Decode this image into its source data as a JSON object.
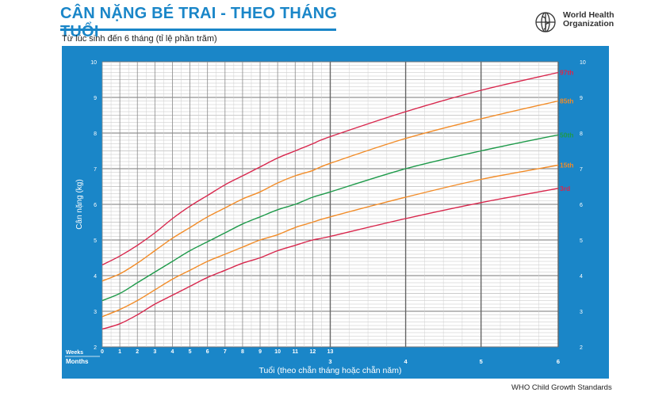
{
  "header": {
    "title": "CÂN NẶNG BÉ TRAI - THEO THÁNG TUỔI",
    "subtitle": "Từ lúc sinh đến 6 tháng (tỉ lệ phần trăm)",
    "logo_line1": "World Health",
    "logo_line2": "Organization",
    "footer": "WHO Child Growth Standards"
  },
  "colors": {
    "frame_blue": "#1a86c8",
    "percentile_97": "#d8264c",
    "percentile_85": "#f28c28",
    "percentile_50": "#1e9a4a",
    "percentile_15": "#f28c28",
    "percentile_3": "#d8264c"
  },
  "chart_data": {
    "type": "line",
    "title": "CÂN NẶNG BÉ TRAI - THEO THÁNG TUỔI",
    "subtitle": "Từ lúc sinh đến 6 tháng (tỉ lệ phần trăm)",
    "xlabel": "Tuổi (theo chẵn tháng hoặc chẵn năm)",
    "ylabel": "Cân nặng (kg)",
    "x_unit": "weeks",
    "xlim": [
      0,
      26
    ],
    "ylim": [
      2,
      10
    ],
    "week_label": "Weeks",
    "month_label": "Months",
    "week_ticks": [
      "0",
      "1",
      "2",
      "3",
      "4",
      "5",
      "6",
      "7",
      "8",
      "9",
      "10",
      "11",
      "12",
      "13"
    ],
    "month_ticks": [
      {
        "week": 13,
        "label": "3"
      },
      {
        "week": 17.3,
        "label": "4"
      },
      {
        "week": 21.6,
        "label": "5"
      },
      {
        "week": 26,
        "label": "6"
      }
    ],
    "y_ticks": [
      "2",
      "3",
      "4",
      "5",
      "6",
      "7",
      "8",
      "9",
      "10"
    ],
    "grid": true,
    "series": [
      {
        "name": "97th",
        "x": [
          0,
          1,
          2,
          3,
          4,
          5,
          6,
          7,
          8,
          9,
          10,
          11,
          12,
          13,
          17.3,
          21.6,
          26
        ],
        "values": [
          4.3,
          4.55,
          4.85,
          5.2,
          5.6,
          5.95,
          6.25,
          6.55,
          6.8,
          7.05,
          7.3,
          7.5,
          7.7,
          7.9,
          8.6,
          9.2,
          9.7
        ]
      },
      {
        "name": "85th",
        "x": [
          0,
          1,
          2,
          3,
          4,
          5,
          6,
          7,
          8,
          9,
          10,
          11,
          12,
          13,
          17.3,
          21.6,
          26
        ],
        "values": [
          3.85,
          4.05,
          4.35,
          4.7,
          5.05,
          5.35,
          5.65,
          5.9,
          6.15,
          6.35,
          6.6,
          6.8,
          6.95,
          7.15,
          7.85,
          8.4,
          8.9
        ]
      },
      {
        "name": "50th",
        "x": [
          0,
          1,
          2,
          3,
          4,
          5,
          6,
          7,
          8,
          9,
          10,
          11,
          12,
          13,
          17.3,
          21.6,
          26
        ],
        "values": [
          3.3,
          3.5,
          3.8,
          4.1,
          4.4,
          4.7,
          4.95,
          5.2,
          5.45,
          5.65,
          5.85,
          6.0,
          6.2,
          6.35,
          7.0,
          7.5,
          7.95
        ]
      },
      {
        "name": "15th",
        "x": [
          0,
          1,
          2,
          3,
          4,
          5,
          6,
          7,
          8,
          9,
          10,
          11,
          12,
          13,
          17.3,
          21.6,
          26
        ],
        "values": [
          2.85,
          3.05,
          3.3,
          3.6,
          3.9,
          4.15,
          4.4,
          4.6,
          4.8,
          5.0,
          5.15,
          5.35,
          5.5,
          5.65,
          6.2,
          6.7,
          7.1
        ]
      },
      {
        "name": "3rd",
        "x": [
          0,
          1,
          2,
          3,
          4,
          5,
          6,
          7,
          8,
          9,
          10,
          11,
          12,
          13,
          17.3,
          21.6,
          26
        ],
        "values": [
          2.5,
          2.65,
          2.9,
          3.2,
          3.45,
          3.7,
          3.95,
          4.15,
          4.35,
          4.5,
          4.7,
          4.85,
          5.0,
          5.1,
          5.6,
          6.05,
          6.45
        ]
      }
    ]
  }
}
